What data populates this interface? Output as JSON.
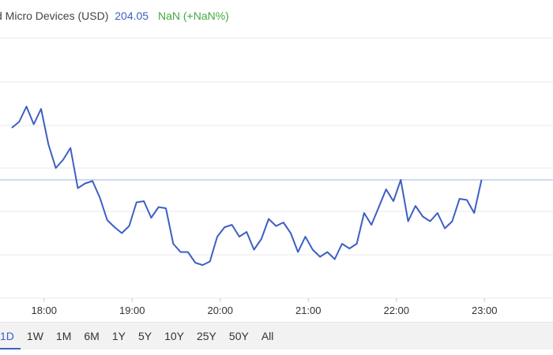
{
  "header": {
    "title": "d Micro Devices (USD)",
    "price": "204.05",
    "change": "NaN (+NaN%)"
  },
  "colors": {
    "line": "#3d5fc4",
    "price": "#3d5fc4",
    "change": "#43a843",
    "grid": "#e9e9e9",
    "reference_line": "#9fb4e0"
  },
  "range_buttons": [
    "1D",
    "1W",
    "1M",
    "6M",
    "1Y",
    "5Y",
    "10Y",
    "25Y",
    "50Y",
    "All"
  ],
  "active_range": "1D",
  "chart_data": {
    "type": "line",
    "x_tick_labels": [
      "18:00",
      "19:00",
      "20:00",
      "21:00",
      "22:00",
      "23:00"
    ],
    "x": [
      "17:38",
      "17:43",
      "17:48",
      "17:53",
      "17:58",
      "18:03",
      "18:08",
      "18:13",
      "18:18",
      "18:23",
      "18:28",
      "18:33",
      "18:38",
      "18:43",
      "18:48",
      "18:53",
      "18:58",
      "19:03",
      "19:08",
      "19:13",
      "19:18",
      "19:23",
      "19:28",
      "19:33",
      "19:38",
      "19:43",
      "19:48",
      "19:53",
      "19:58",
      "20:03",
      "20:08",
      "20:13",
      "20:18",
      "20:23",
      "20:28",
      "20:33",
      "20:38",
      "20:43",
      "20:48",
      "20:53",
      "20:58",
      "21:03",
      "21:08",
      "21:13",
      "21:18",
      "21:23",
      "21:28",
      "21:33",
      "21:38",
      "21:43",
      "21:48",
      "21:53",
      "21:58",
      "22:03",
      "22:08",
      "22:13",
      "22:18",
      "22:23",
      "22:28",
      "22:33",
      "22:38",
      "22:43",
      "22:48",
      "22:53",
      "22:58"
    ],
    "values": [
      0.44,
      0.49,
      0.62,
      0.47,
      0.6,
      0.3,
      0.1,
      0.17,
      0.27,
      -0.07,
      -0.03,
      -0.01,
      -0.15,
      -0.34,
      -0.4,
      -0.45,
      -0.39,
      -0.19,
      -0.18,
      -0.32,
      -0.23,
      -0.24,
      -0.54,
      -0.61,
      -0.61,
      -0.7,
      -0.72,
      -0.69,
      -0.48,
      -0.4,
      -0.38,
      -0.48,
      -0.44,
      -0.59,
      -0.5,
      -0.33,
      -0.39,
      -0.36,
      -0.45,
      -0.61,
      -0.48,
      -0.59,
      -0.65,
      -0.61,
      -0.67,
      -0.54,
      -0.58,
      -0.54,
      -0.28,
      -0.38,
      -0.23,
      -0.08,
      -0.18,
      0.0,
      -0.35,
      -0.22,
      -0.31,
      -0.35,
      -0.28,
      -0.41,
      -0.35,
      -0.16,
      -0.17,
      -0.28,
      0.0
    ],
    "reference_value": 0,
    "ylim": [
      -1.0,
      1.2
    ],
    "grid": true
  }
}
